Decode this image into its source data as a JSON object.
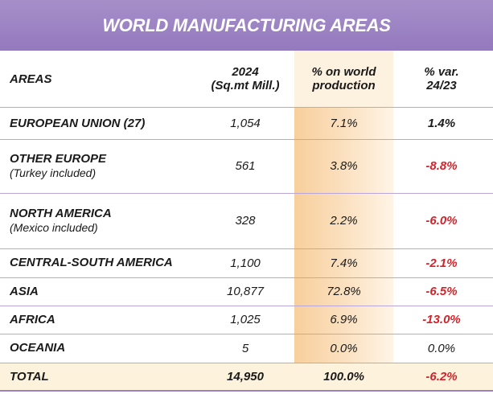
{
  "chart_data": {
    "type": "table",
    "title": "WORLD MANUFACTURING AREAS",
    "columns": [
      "AREAS",
      "2024 (Sq.mt Mill.)",
      "% on world production",
      "% var. 24/23"
    ],
    "headers": {
      "areas": "AREAS",
      "year_line1": "2024",
      "year_line2": "(Sq.mt Mill.)",
      "pct_line1": "% on world",
      "pct_line2": "production",
      "var_line1": "% var.",
      "var_line2": "24/23"
    },
    "rows": [
      {
        "area": "EUROPEAN UNION (27)",
        "note": "",
        "sqmt": "1,054",
        "pct": "7.1%",
        "var": "1.4%",
        "var_value": 1.4
      },
      {
        "area": "OTHER EUROPE",
        "note": "(Turkey included)",
        "sqmt": "561",
        "pct": "3.8%",
        "var": "-8.8%",
        "var_value": -8.8
      },
      {
        "area": "NORTH AMERICA",
        "note": "(Mexico included)",
        "sqmt": "328",
        "pct": "2.2%",
        "var": "-6.0%",
        "var_value": -6.0
      },
      {
        "area": "CENTRAL-SOUTH AMERICA",
        "note": "",
        "sqmt": "1,100",
        "pct": "7.4%",
        "var": "-2.1%",
        "var_value": -2.1
      },
      {
        "area": "ASIA",
        "note": "",
        "sqmt": "10,877",
        "pct": "72.8%",
        "var": "-6.5%",
        "var_value": -6.5
      },
      {
        "area": "AFRICA",
        "note": "",
        "sqmt": "1,025",
        "pct": "6.9%",
        "var": "-13.0%",
        "var_value": -13.0
      },
      {
        "area": "OCEANIA",
        "note": "",
        "sqmt": "5",
        "pct": "0.0%",
        "var": "0.0%",
        "var_value": 0.0
      }
    ],
    "total": {
      "area": "TOTAL",
      "sqmt": "14,950",
      "pct": "100.0%",
      "var": "-6.2%",
      "var_value": -6.2
    }
  },
  "colors": {
    "title_bg": "#9b82c4",
    "negative": "#d2232a",
    "highlight": "#f8cf9c",
    "divider": "#b9a6d9"
  }
}
